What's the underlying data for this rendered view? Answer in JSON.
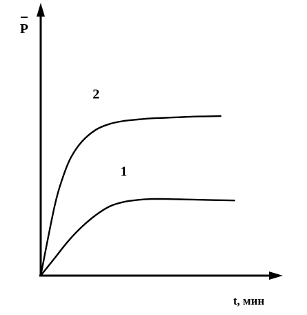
{
  "chart_data": {
    "type": "line",
    "ylabel": "P",
    "xlabel": "t, мин",
    "series": [
      {
        "name": "1",
        "x": [
          0,
          5,
          10,
          15,
          20,
          25,
          30,
          35,
          40,
          45,
          50,
          55,
          60,
          65,
          70
        ],
        "y": [
          0,
          6,
          12,
          17,
          21,
          24,
          25.5,
          26.2,
          26.5,
          26.5,
          26.4,
          26.3,
          26.2,
          26.1,
          26
        ]
      },
      {
        "name": "2",
        "x": [
          0,
          5,
          8,
          11,
          15,
          20,
          25,
          30,
          35,
          40,
          45,
          50,
          55,
          60,
          65
        ],
        "y": [
          0,
          24,
          34,
          41,
          46.5,
          50.5,
          52.5,
          53.5,
          54,
          54.4,
          54.6,
          54.8,
          55,
          55.1,
          55.2
        ]
      }
    ],
    "xlim": [
      0,
      85
    ],
    "ylim": [
      0,
      92
    ],
    "grid": false,
    "legend": "none",
    "colors": {
      "line": "#000000",
      "axis": "#000000",
      "background": "#ffffff"
    }
  }
}
